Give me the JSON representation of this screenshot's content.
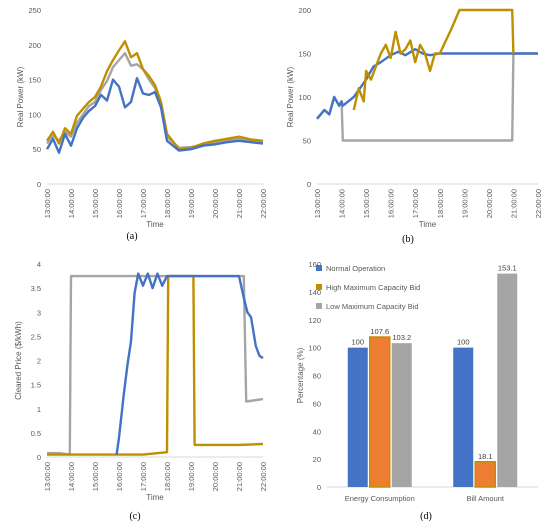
{
  "colors": {
    "normal": "#4472C4",
    "high": "#BF8F00",
    "low": "#A5A5A5",
    "bar_high": "#ED7D31",
    "text": "#595959"
  },
  "chart_data": [
    {
      "id": "a",
      "type": "line",
      "panel_label": "(a)",
      "xlabel": "Time",
      "ylabel": "Real Power (kW)",
      "ylim": [
        0,
        250
      ],
      "yticks": [
        "0",
        "50",
        "100",
        "150",
        "200",
        "250"
      ],
      "xlim": [
        13,
        22
      ],
      "xticks": [
        "13:00:00",
        "14:00:00",
        "15:00:00",
        "16:00:00",
        "17:00:00",
        "18:00:00",
        "19:00:00",
        "20:00:00",
        "21:00:00",
        "22:00:00"
      ],
      "series": [
        {
          "key": "low",
          "x": [
            13.0,
            13.25,
            13.5,
            13.75,
            14.0,
            14.25,
            14.5,
            14.75,
            15.0,
            15.25,
            15.5,
            15.75,
            16.0,
            16.25,
            16.5,
            16.75,
            17.0,
            17.25,
            17.5,
            17.75,
            18.0,
            18.5,
            19.0,
            19.5,
            20.0,
            20.5,
            21.0,
            21.5,
            22.0
          ],
          "y": [
            58,
            70,
            62,
            75,
            68,
            88,
            100,
            112,
            118,
            135,
            148,
            168,
            178,
            188,
            170,
            172,
            165,
            150,
            138,
            115,
            68,
            52,
            53,
            56,
            60,
            62,
            65,
            62,
            60
          ]
        },
        {
          "key": "high",
          "x": [
            13.0,
            13.25,
            13.5,
            13.75,
            14.0,
            14.25,
            14.5,
            14.75,
            15.0,
            15.25,
            15.5,
            15.75,
            16.0,
            16.25,
            16.5,
            16.75,
            17.0,
            17.25,
            17.5,
            17.75,
            18.0,
            18.5,
            19.0,
            19.5,
            20.0,
            20.5,
            21.0,
            21.5,
            22.0
          ],
          "y": [
            62,
            75,
            58,
            80,
            72,
            98,
            108,
            118,
            125,
            140,
            162,
            178,
            192,
            205,
            182,
            188,
            165,
            155,
            142,
            118,
            72,
            50,
            52,
            58,
            62,
            65,
            68,
            64,
            62
          ]
        },
        {
          "key": "normal",
          "x": [
            13.0,
            13.25,
            13.5,
            13.75,
            14.0,
            14.25,
            14.5,
            14.75,
            15.0,
            15.25,
            15.5,
            15.75,
            16.0,
            16.25,
            16.5,
            16.75,
            17.0,
            17.25,
            17.5,
            17.75,
            18.0,
            18.5,
            19.0,
            19.5,
            20.0,
            20.5,
            21.0,
            21.5,
            22.0
          ],
          "y": [
            50,
            65,
            45,
            72,
            55,
            80,
            95,
            105,
            112,
            128,
            120,
            150,
            140,
            110,
            118,
            152,
            130,
            128,
            132,
            110,
            62,
            48,
            50,
            55,
            57,
            60,
            62,
            60,
            58
          ]
        }
      ]
    },
    {
      "id": "b",
      "type": "line",
      "panel_label": "(b)",
      "xlabel": "Time",
      "ylabel": "Real Power (kW)",
      "ylim": [
        0,
        200
      ],
      "yticks": [
        "0",
        "50",
        "100",
        "150",
        "200"
      ],
      "xlim": [
        13,
        22
      ],
      "xticks": [
        "13:00:00",
        "14:00:00",
        "15:00:00",
        "16:00:00",
        "17:00:00",
        "18:00:00",
        "19:00:00",
        "20:00:00",
        "21:00:00",
        "22:00:00"
      ],
      "series": [
        {
          "key": "low",
          "x": [
            13.0,
            13.3,
            13.5,
            13.7,
            13.9,
            14.0,
            14.05,
            20.95,
            21.0,
            22.0
          ],
          "y": [
            75,
            85,
            80,
            100,
            90,
            95,
            50,
            50,
            150,
            150
          ]
        },
        {
          "key": "normal",
          "x": [
            13.0,
            13.3,
            13.5,
            13.7,
            13.9,
            14.0,
            14.05,
            14.5,
            15.0,
            15.3,
            15.6,
            16.0,
            16.3,
            16.6,
            17.0,
            17.3,
            17.6,
            18.0,
            21.0,
            22.0
          ],
          "y": [
            75,
            85,
            80,
            100,
            90,
            95,
            90,
            100,
            120,
            135,
            140,
            148,
            152,
            148,
            155,
            150,
            148,
            150,
            150,
            150
          ]
        },
        {
          "key": "high",
          "x": [
            14.5,
            14.7,
            14.9,
            15.0,
            15.2,
            15.4,
            15.6,
            15.8,
            16.0,
            16.2,
            16.4,
            16.6,
            16.8,
            17.0,
            17.2,
            17.4,
            17.6,
            17.8,
            18.0,
            18.5,
            18.8,
            19.0,
            20.95,
            21.0
          ],
          "y": [
            85,
            110,
            95,
            130,
            120,
            135,
            150,
            160,
            145,
            175,
            150,
            155,
            165,
            140,
            160,
            150,
            130,
            150,
            150,
            180,
            200,
            200,
            200,
            150
          ]
        }
      ]
    },
    {
      "id": "c",
      "type": "line",
      "panel_label": "(c)",
      "xlabel": "Time",
      "ylabel": "Cleared Price ($/kWh)",
      "ylim": [
        0,
        4
      ],
      "yticks": [
        "0",
        "0.5",
        "1",
        "1.5",
        "2",
        "2.5",
        "3",
        "3.5",
        "4"
      ],
      "xlim": [
        13,
        22
      ],
      "xticks": [
        "13:00:00",
        "14:00:00",
        "15:00:00",
        "16:00:00",
        "17:00:00",
        "18:00:00",
        "19:00:00",
        "20:00:00",
        "21:00:00",
        "22:00:00"
      ],
      "series": [
        {
          "key": "low",
          "x": [
            13.0,
            13.5,
            13.95,
            14.0,
            21.2,
            21.3,
            22.0
          ],
          "y": [
            0.08,
            0.08,
            0.05,
            3.75,
            3.75,
            1.15,
            1.2
          ]
        },
        {
          "key": "high",
          "x": [
            13.0,
            14.0,
            15.0,
            16.0,
            17.0,
            18.0,
            18.05,
            18.1,
            19.1,
            19.15,
            20.0,
            21.0,
            22.0
          ],
          "y": [
            0.05,
            0.05,
            0.05,
            0.05,
            0.05,
            0.1,
            3.75,
            3.75,
            3.75,
            0.25,
            0.25,
            0.25,
            0.27
          ]
        },
        {
          "key": "normal",
          "x": [
            15.9,
            16.0,
            16.2,
            16.35,
            16.5,
            16.65,
            16.8,
            17.0,
            17.2,
            17.4,
            17.6,
            17.8,
            18.0,
            21.0,
            21.2,
            21.35,
            21.5,
            21.7,
            21.85,
            22.0
          ],
          "y": [
            0.05,
            0.4,
            1.3,
            1.9,
            2.4,
            3.4,
            3.8,
            3.55,
            3.8,
            3.5,
            3.8,
            3.55,
            3.75,
            3.75,
            3.3,
            3.0,
            2.9,
            2.3,
            2.1,
            2.05
          ]
        }
      ]
    },
    {
      "id": "d",
      "type": "bar",
      "panel_label": "(d)",
      "ylabel": "Percentage (%)",
      "ylim": [
        0,
        160
      ],
      "yticks": [
        "0",
        "20",
        "40",
        "60",
        "80",
        "100",
        "120",
        "140",
        "160"
      ],
      "categories": [
        "Energy Consumption",
        "Bill Amount"
      ],
      "legend_position": "top-left",
      "series": [
        {
          "key": "normal",
          "name": "Normal Operation",
          "values": [
            100,
            100
          ],
          "labels": [
            "100",
            "100"
          ]
        },
        {
          "key": "high",
          "name": "High Maximum Capacity Bid",
          "values": [
            107.6,
            18.1
          ],
          "labels": [
            "107.6",
            "18.1"
          ]
        },
        {
          "key": "low",
          "name": "Low Maximum Capacity Bid",
          "values": [
            103.2,
            153.1
          ],
          "labels": [
            "103.2",
            "153.1"
          ]
        }
      ]
    }
  ]
}
